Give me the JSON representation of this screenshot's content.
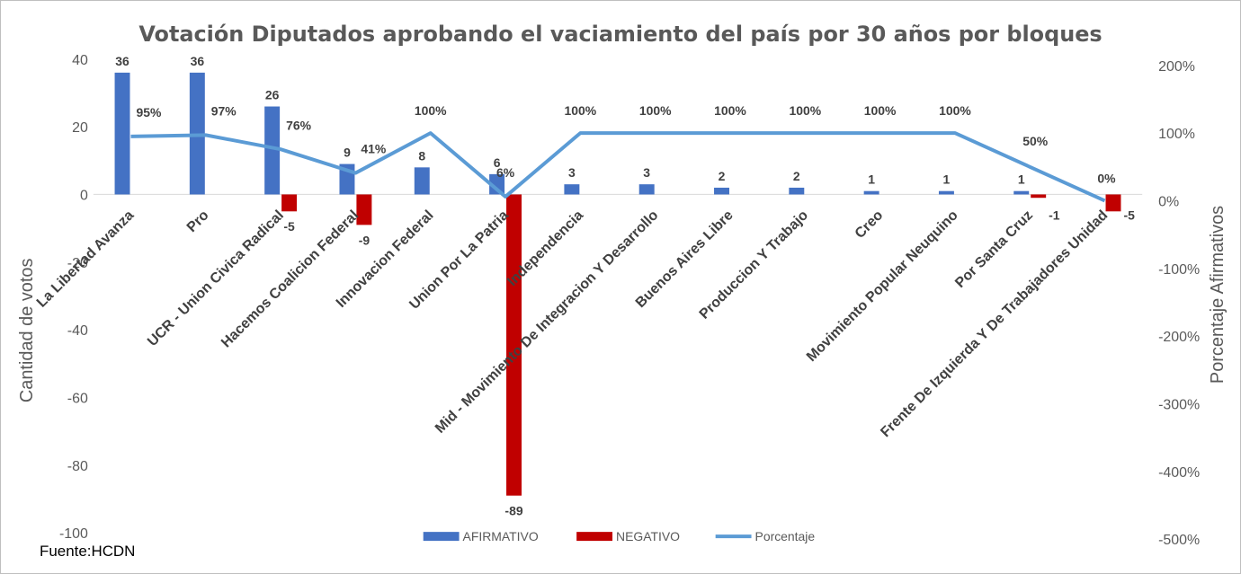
{
  "source_note": "Fuente:HCDN",
  "chart_data": {
    "type": "bar",
    "title": "Votación Diputados aprobando el vaciamiento del país por 30 años por bloques",
    "ylabel": "Cantidad de votos",
    "y2label": "Porcentaje Afirmativos",
    "ylim": [
      -100,
      40
    ],
    "y2lim": [
      -5,
      2
    ],
    "yticks": [
      "40",
      "20",
      "0",
      "-20",
      "-40",
      "-60",
      "-80",
      "-100"
    ],
    "y2ticks": [
      "200%",
      "100%",
      "0%",
      "-100%",
      "-200%",
      "-300%",
      "-400%",
      "-500%"
    ],
    "legend_position": "bottom",
    "categories": [
      "La Libertad Avanza",
      "Pro",
      "UCR - Union Civica Radical",
      "Hacemos Coalicion Federal",
      "Innovacion Federal",
      "Union Por La Patria",
      "Independencia",
      "Mid - Movimiento De Integracion Y Desarrollo",
      "Buenos Aires Libre",
      "Produccion Y Trabajo",
      "Creo",
      "Movimiento Popular  Neuquino",
      "Por Santa Cruz",
      "Frente De Izquierda Y De Trabajadores Unidad"
    ],
    "series": [
      {
        "name": "AFIRMATIVO",
        "kind": "bar",
        "color": "#4472c4",
        "values": [
          36,
          36,
          26,
          9,
          8,
          6,
          3,
          3,
          2,
          2,
          1,
          1,
          1,
          0
        ],
        "labels": [
          "36",
          "36",
          "26",
          "9",
          "8",
          "6",
          "3",
          "3",
          "2",
          "2",
          "1",
          "1",
          "1",
          ""
        ]
      },
      {
        "name": "NEGATIVO",
        "kind": "bar",
        "color": "#c00000",
        "values": [
          0,
          0,
          -5,
          -9,
          0,
          -89,
          0,
          0,
          0,
          0,
          0,
          0,
          -1,
          -5
        ],
        "labels": [
          "",
          "",
          "-5",
          "-9",
          "",
          "-89",
          "",
          "",
          "",
          "",
          "",
          "",
          "-1",
          "-5"
        ]
      },
      {
        "name": "Porcentaje",
        "kind": "line",
        "axis": "right",
        "color": "#5b9bd5",
        "values": [
          0.95,
          0.97,
          0.76,
          0.41,
          1.0,
          0.06,
          1.0,
          1.0,
          1.0,
          1.0,
          1.0,
          1.0,
          0.5,
          0.0
        ],
        "labels": [
          "95%",
          "97%",
          "76%",
          "41%",
          "100%",
          "6%",
          "100%",
          "100%",
          "100%",
          "100%",
          "100%",
          "100%",
          "50%",
          "0%"
        ]
      }
    ]
  }
}
